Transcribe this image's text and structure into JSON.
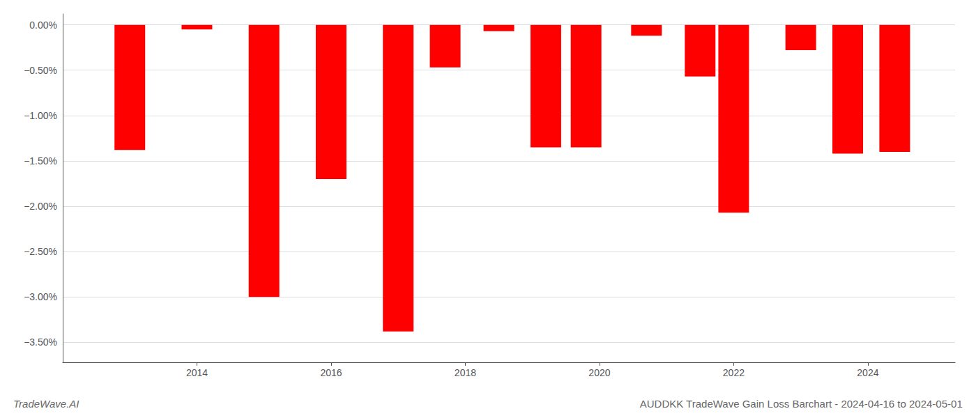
{
  "chart_data": {
    "type": "bar",
    "title": "AUDDKK TradeWave Gain Loss Barchart - 2024-04-16 to 2024-05-01",
    "annotations": [
      "TradeWave.AI"
    ],
    "x": [
      2013,
      2014,
      2015,
      2016,
      2017,
      2017.7,
      2018.5,
      2019.2,
      2019.8,
      2020.7,
      2021.5,
      2022,
      2023,
      2023.7,
      2024.4
    ],
    "values": [
      -1.38,
      -0.05,
      -3.0,
      -1.7,
      -3.38,
      -0.47,
      -0.07,
      -1.35,
      -1.35,
      -0.12,
      -0.57,
      -2.07,
      -0.28,
      -1.42,
      -1.4
    ],
    "color": "#ff0000",
    "xlim": [
      2012.0,
      2025.3
    ],
    "xticks": [
      2014,
      2016,
      2018,
      2020,
      2022,
      2024
    ],
    "ylim": [
      -3.72,
      0.12
    ],
    "yticks": [
      {
        "value": 0.0,
        "label": "0.00%"
      },
      {
        "value": -0.5,
        "label": "−0.50%"
      },
      {
        "value": -1.0,
        "label": "−1.00%"
      },
      {
        "value": -1.5,
        "label": "−1.50%"
      },
      {
        "value": -2.0,
        "label": "−2.00%"
      },
      {
        "value": -2.5,
        "label": "−2.50%"
      },
      {
        "value": -3.0,
        "label": "−3.00%"
      },
      {
        "value": -3.5,
        "label": "−3.50%"
      }
    ],
    "grid": true
  }
}
